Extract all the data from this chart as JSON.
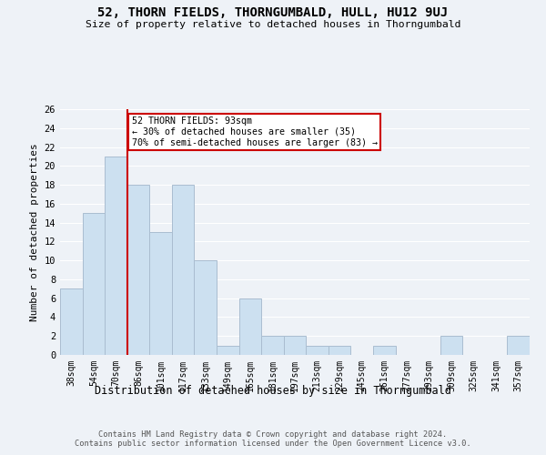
{
  "title": "52, THORN FIELDS, THORNGUMBALD, HULL, HU12 9UJ",
  "subtitle": "Size of property relative to detached houses in Thorngumbald",
  "xlabel": "Distribution of detached houses by size in Thorngumbald",
  "ylabel": "Number of detached properties",
  "categories": [
    "38sqm",
    "54sqm",
    "70sqm",
    "86sqm",
    "101sqm",
    "117sqm",
    "133sqm",
    "149sqm",
    "165sqm",
    "181sqm",
    "197sqm",
    "213sqm",
    "229sqm",
    "245sqm",
    "261sqm",
    "277sqm",
    "293sqm",
    "309sqm",
    "325sqm",
    "341sqm",
    "357sqm"
  ],
  "values": [
    7,
    15,
    21,
    18,
    13,
    18,
    10,
    1,
    6,
    2,
    2,
    1,
    1,
    0,
    1,
    0,
    0,
    2,
    0,
    0,
    2
  ],
  "bar_color": "#cce0f0",
  "bar_edge_color": "#aabdd0",
  "ylim": [
    0,
    26
  ],
  "yticks": [
    0,
    2,
    4,
    6,
    8,
    10,
    12,
    14,
    16,
    18,
    20,
    22,
    24,
    26
  ],
  "property_line_x": 2.5,
  "annotation_text": "52 THORN FIELDS: 93sqm\n← 30% of detached houses are smaller (35)\n70% of semi-detached houses are larger (83) →",
  "annotation_box_color": "#ffffff",
  "annotation_box_edge_color": "#cc0000",
  "line_color": "#cc0000",
  "footer_line1": "Contains HM Land Registry data © Crown copyright and database right 2024.",
  "footer_line2": "Contains public sector information licensed under the Open Government Licence v3.0.",
  "bg_color": "#eef2f7",
  "grid_color": "#ffffff",
  "title_fontsize": 10,
  "subtitle_fontsize": 8.5
}
